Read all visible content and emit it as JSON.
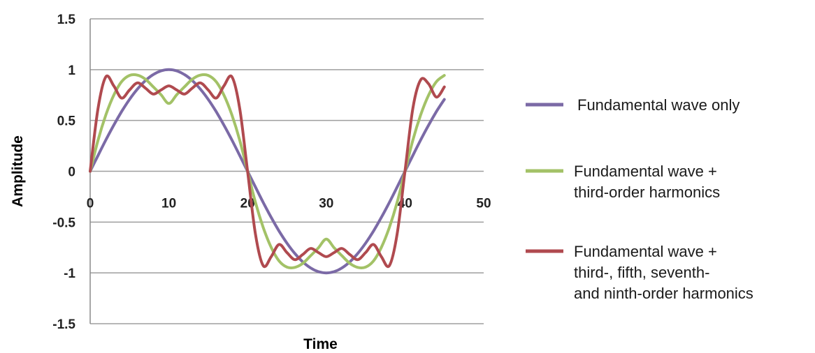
{
  "chart_data": {
    "type": "line",
    "xlabel": "Time",
    "ylabel": "Amplitude",
    "xlim": [
      0,
      50
    ],
    "ylim": [
      -1.5,
      1.5
    ],
    "x_ticks": [
      "0",
      "10",
      "20",
      "30",
      "40",
      "50"
    ],
    "y_ticks": [
      "1.5",
      "1",
      "0.5",
      "0",
      "-0.5",
      "-1",
      "-1.5"
    ],
    "grid": "horizontal",
    "legend_position": "right",
    "x": [
      0,
      1,
      2,
      3,
      4,
      5,
      6,
      7,
      8,
      9,
      10,
      11,
      12,
      13,
      14,
      15,
      16,
      17,
      18,
      19,
      20,
      21,
      22,
      23,
      24,
      25,
      26,
      27,
      28,
      29,
      30,
      31,
      32,
      33,
      34,
      35,
      36,
      37,
      38,
      39,
      40,
      41,
      42,
      43,
      44,
      45
    ],
    "series": [
      {
        "name": "Fundamental wave only",
        "color": "#7b6aa6",
        "values": [
          0,
          0.156,
          0.309,
          0.454,
          0.588,
          0.707,
          0.809,
          0.891,
          0.951,
          0.988,
          1.0,
          0.988,
          0.951,
          0.891,
          0.809,
          0.707,
          0.588,
          0.454,
          0.309,
          0.156,
          0,
          -0.156,
          -0.309,
          -0.454,
          -0.588,
          -0.707,
          -0.809,
          -0.891,
          -0.951,
          -0.988,
          -1.0,
          -0.988,
          -0.951,
          -0.891,
          -0.809,
          -0.707,
          -0.588,
          -0.454,
          -0.309,
          -0.156,
          0,
          0.156,
          0.309,
          0.454,
          0.588,
          0.707
        ]
      },
      {
        "name": "Fundamental wave + third-order harmonics",
        "color": "#a3c267",
        "values": [
          0,
          0.307,
          0.556,
          0.749,
          0.882,
          0.943,
          0.946,
          0.907,
          0.832,
          0.754,
          0.667,
          0.754,
          0.832,
          0.907,
          0.946,
          0.943,
          0.882,
          0.749,
          0.556,
          0.307,
          0,
          -0.307,
          -0.556,
          -0.749,
          -0.882,
          -0.943,
          -0.946,
          -0.907,
          -0.832,
          -0.754,
          -0.667,
          -0.754,
          -0.832,
          -0.907,
          -0.946,
          -0.943,
          -0.882,
          -0.749,
          -0.556,
          -0.307,
          0,
          0.307,
          0.556,
          0.749,
          0.882,
          0.943
        ]
      },
      {
        "name": "Fundamental wave + third-, fifth, seventh- and ninth-order harmonics",
        "color": "#b04a4f",
        "values": [
          0,
          0.62,
          0.93,
          0.84,
          0.72,
          0.8,
          0.87,
          0.82,
          0.76,
          0.8,
          0.84,
          0.8,
          0.76,
          0.82,
          0.87,
          0.8,
          0.72,
          0.84,
          0.93,
          0.62,
          0,
          -0.62,
          -0.93,
          -0.84,
          -0.72,
          -0.8,
          -0.87,
          -0.82,
          -0.76,
          -0.8,
          -0.84,
          -0.8,
          -0.76,
          -0.82,
          -0.87,
          -0.8,
          -0.72,
          -0.84,
          -0.93,
          -0.62,
          0,
          0.62,
          0.9,
          0.86,
          0.73,
          0.83
        ]
      }
    ],
    "legend": [
      {
        "lines": [
          "Fundamental wave only"
        ]
      },
      {
        "lines": [
          "Fundamental wave +",
          "third-order harmonics"
        ]
      },
      {
        "lines": [
          "Fundamental wave +",
          "third-, fifth, seventh-",
          "and ninth-order harmonics"
        ]
      }
    ]
  }
}
